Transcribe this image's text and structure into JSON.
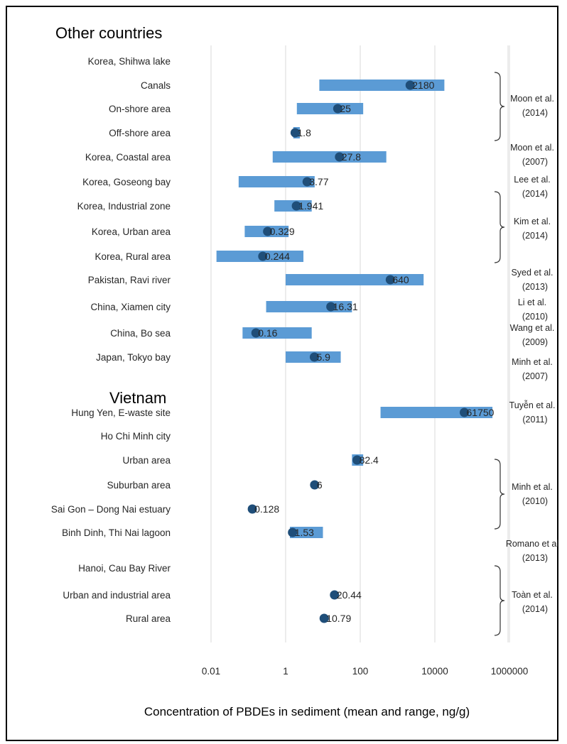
{
  "chart_data": {
    "type": "bar",
    "xscale": "log",
    "xlim": [
      0.001,
      1000000
    ],
    "xlabel": "Concentration of PBDEs in sediment (mean and range, ng/g)",
    "xticks": [
      "0.01",
      "1",
      "100",
      "10000",
      "1000000"
    ],
    "xtick_values": [
      0.01,
      1,
      100,
      10000,
      1000000
    ],
    "grid": true,
    "colors": {
      "range_bar": "#5b9bd5",
      "mean_dot": "#1f4e79",
      "grid": "#d9d9d9"
    },
    "sections": [
      {
        "title": "Other countries",
        "rows": [
          {
            "label": "Korea, Shihwa lake",
            "header": true
          },
          {
            "label": "Canals",
            "min": 8,
            "max": 18000,
            "mean": 2180,
            "mean_label": "2180"
          },
          {
            "label": "On-shore area",
            "min": 2,
            "max": 120,
            "mean": 25,
            "mean_label": "25"
          },
          {
            "label": "Off-shore area",
            "min": 1.6,
            "max": 2.4,
            "mean": 1.8,
            "mean_label": "1.8"
          },
          {
            "label": "Korea, Coastal area",
            "min": 0.45,
            "max": 500,
            "mean": 27.8,
            "mean_label": "27.8"
          },
          {
            "label": "Korea, Goseong bay",
            "min": 0.055,
            "max": 6,
            "mean": 3.77,
            "mean_label": "3.77"
          },
          {
            "label": "Korea, Industrial zone",
            "min": 0.5,
            "max": 5,
            "mean": 1.941,
            "mean_label": "1.941"
          },
          {
            "label": "Korea, Urban area",
            "min": 0.08,
            "max": 1.2,
            "mean": 0.329,
            "mean_label": "0.329"
          },
          {
            "label": "Korea, Rural area",
            "min": 0.014,
            "max": 3,
            "mean": 0.244,
            "mean_label": "0.244"
          },
          {
            "label": "Pakistan, Ravi river",
            "min": 1,
            "max": 5000,
            "mean": 640,
            "mean_label": "640"
          },
          {
            "label": "China, Xiamen city",
            "min": 0.3,
            "max": 60,
            "mean": 16.31,
            "mean_label": "16.31"
          },
          {
            "label": "China, Bo sea",
            "min": 0.07,
            "max": 5,
            "mean": 0.16,
            "mean_label": "0.16"
          },
          {
            "label": "Japan, Tokyo bay",
            "min": 1,
            "max": 30,
            "mean": 5.9,
            "mean_label": "5.9"
          }
        ]
      },
      {
        "title": "Vietnam",
        "rows": [
          {
            "label": "Hung Yen, E-waste site",
            "min": 350,
            "max": 350000,
            "mean": 61750,
            "mean_label": "61750"
          },
          {
            "label": "Ho Chi Minh city",
            "header": true
          },
          {
            "label": "Urban area",
            "min": 60,
            "max": 120,
            "mean": 82.4,
            "mean_label": "82.4"
          },
          {
            "label": "Suburban area",
            "mean": 6,
            "mean_label": "6"
          },
          {
            "label": "Sai Gon – Dong Nai estuary",
            "mean": 0.128,
            "mean_label": "0.128"
          },
          {
            "label": "Binh Dinh, Thi Nai lagoon",
            "min": 1.3,
            "max": 10,
            "mean": 1.53,
            "mean_label": "1.53"
          },
          {
            "label": "Hanoi, Cau Bay River",
            "header": true
          },
          {
            "label": "Urban and industrial area",
            "mean": 20.44,
            "mean_label": "20.44"
          },
          {
            "label": "Rural area",
            "mean": 10.79,
            "mean_label": "10.79"
          }
        ]
      }
    ],
    "references": [
      {
        "line1": "Moon et al.",
        "line2": "(2014)"
      },
      {
        "line1": "Moon et al.",
        "line2": "(2007)"
      },
      {
        "line1": "Lee et al.",
        "line2": "(2014)"
      },
      {
        "line1": "Kim et al.",
        "line2": "(2014)"
      },
      {
        "line1": "Syed et al.",
        "line2": "(2013)"
      },
      {
        "line1": "Li et al.",
        "line2": "(2010)"
      },
      {
        "line1": "Wang et al.",
        "line2": "(2009)"
      },
      {
        "line1": "Minh et al.",
        "line2": "(2007)"
      },
      {
        "line1": "Tuyễn et al.",
        "line2": "(2011)"
      },
      {
        "line1": "Minh et al.",
        "line2": "(2010)"
      },
      {
        "line1": "Romano et al",
        "line2": "(2013)"
      },
      {
        "line1": "Toàn et al.",
        "line2": "(2014)"
      }
    ]
  }
}
